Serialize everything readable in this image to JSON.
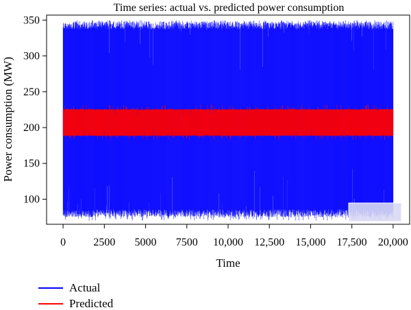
{
  "chart_data": {
    "type": "line",
    "title": "Time series: actual vs. predicted power consumption",
    "xlabel": "Time",
    "ylabel": "Power consumption (MW)",
    "xlim": [
      -1000,
      21000
    ],
    "ylim": [
      65,
      357
    ],
    "x_ticks": [
      0,
      2500,
      5000,
      7500,
      10000,
      12500,
      15000,
      17500,
      20000
    ],
    "x_tick_labels": [
      "0",
      "2500",
      "5000",
      "7500",
      "10,000",
      "12,500",
      "15,000",
      "17,500",
      "20,000"
    ],
    "y_ticks": [
      100,
      150,
      200,
      250,
      300,
      350
    ],
    "y_tick_labels": [
      "100",
      "150",
      "200",
      "250",
      "300",
      "350"
    ],
    "grid": false,
    "legend_position": "below",
    "series": [
      {
        "name": "Actual",
        "color": "#0000ff",
        "x_start": 0,
        "x_end": 20000,
        "value_range": [
          70,
          350
        ],
        "typical_band": [
          75,
          348
        ]
      },
      {
        "name": "Predicted",
        "color": "#ff0000",
        "x_start": 0,
        "x_end": 20000,
        "value_range": [
          183,
          232
        ],
        "typical_band": [
          188,
          226
        ]
      }
    ]
  }
}
